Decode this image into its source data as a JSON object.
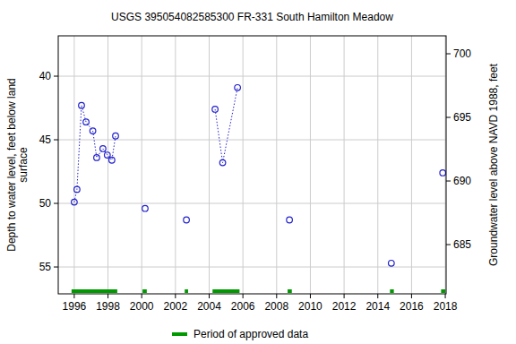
{
  "chart_data": {
    "type": "scatter",
    "title": "USGS 395054082585300 FR-331 South Hamilton Meadow",
    "ylabel": [
      "Depth to water level, feet below land",
      "surface"
    ],
    "y2label": "Groundwater level above NAVD 1988, feet",
    "xlim": [
      1995.05,
      2018.05
    ],
    "xticks": [
      1996,
      1998,
      2000,
      2002,
      2004,
      2006,
      2008,
      2010,
      2012,
      2014,
      2016,
      2018
    ],
    "ylim": [
      57.11,
      36.83
    ],
    "yticks": [
      40,
      45,
      50,
      55
    ],
    "y2lim": [
      681.13,
      701.41
    ],
    "y2ticks": [
      685,
      690,
      695,
      700
    ],
    "grid": true,
    "series": [
      {
        "name": "Depth to water level",
        "color": "#2222cc",
        "marker": "circle",
        "line_style": "dotted",
        "x": [
          1996.0,
          1996.16,
          1996.43,
          1996.7,
          1997.1,
          1997.33,
          1997.7,
          1997.96,
          1998.23,
          1998.45,
          null,
          2000.2,
          null,
          2002.65,
          null,
          2004.35,
          2004.8,
          2005.68,
          null,
          2008.76,
          null,
          2014.8,
          null,
          2017.85
        ],
        "values": [
          49.9,
          48.9,
          42.3,
          43.6,
          44.3,
          46.4,
          45.7,
          46.2,
          46.6,
          44.7,
          null,
          50.4,
          null,
          51.3,
          null,
          42.6,
          46.8,
          40.9,
          null,
          51.3,
          null,
          54.7,
          null,
          47.6
        ]
      }
    ],
    "approved_periods": {
      "name": "Period of approved data",
      "color": "#009900",
      "ranges": [
        [
          1995.84,
          1998.55
        ],
        [
          2000.05,
          2000.3
        ],
        [
          2002.55,
          2002.75
        ],
        [
          2004.2,
          2005.8
        ],
        [
          2008.65,
          2008.9
        ],
        [
          2014.72,
          2014.95
        ],
        [
          2017.75,
          2018.0
        ]
      ]
    },
    "legend": "bottom"
  }
}
